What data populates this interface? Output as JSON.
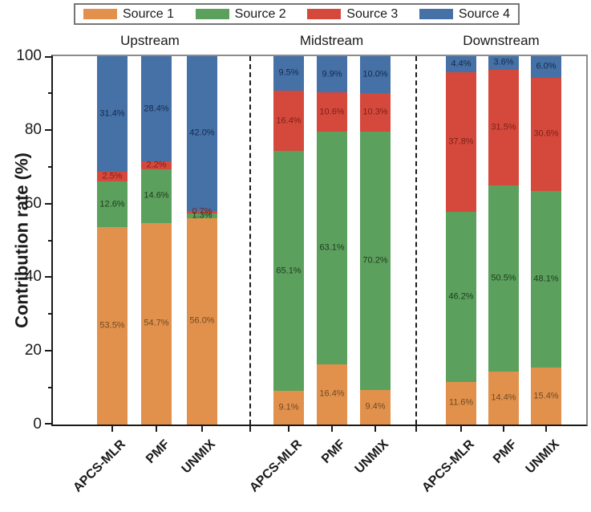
{
  "chart_data": {
    "type": "bar",
    "stacked": true,
    "title": "",
    "xlabel": "",
    "ylabel": "Contribution rate (%)",
    "ylim": [
      0,
      100
    ],
    "yticks_major": [
      0,
      20,
      40,
      60,
      80,
      100
    ],
    "yticks_minor": [
      10,
      30,
      50,
      70,
      90
    ],
    "grid": false,
    "legend_position": "top",
    "legend": [
      {
        "label": "Source 1",
        "color": "#E2914C",
        "label_color": "#6E4A24"
      },
      {
        "label": "Source 2",
        "color": "#5CA05E",
        "label_color": "#1C3C1C"
      },
      {
        "label": "Source 3",
        "color": "#D5493D",
        "label_color": "#7C1F16"
      },
      {
        "label": "Source 4",
        "color": "#4571A6",
        "label_color": "#16294D"
      }
    ],
    "groups": [
      {
        "name": "Upstream",
        "bars": [
          {
            "category": "APCS-MLR",
            "values": [
              53.5,
              12.6,
              2.5,
              31.4
            ],
            "labels": [
              "53.5%",
              "12.6%",
              "2.5%",
              "31.4%"
            ]
          },
          {
            "category": "PMF",
            "values": [
              54.7,
              14.6,
              2.2,
              28.4
            ],
            "labels": [
              "54.7%",
              "14.6%",
              "2.2%",
              "28.4%"
            ]
          },
          {
            "category": "UNMIX",
            "values": [
              56.0,
              1.3,
              0.7,
              42.0
            ],
            "labels": [
              "56.0%",
              "1.3%",
              "0.7%",
              "42.0%"
            ]
          }
        ]
      },
      {
        "name": "Midstream",
        "bars": [
          {
            "category": "APCS-MLR",
            "values": [
              9.1,
              65.1,
              16.4,
              9.5
            ],
            "labels": [
              "9.1%",
              "65.1%",
              "16.4%",
              "9.5%"
            ]
          },
          {
            "category": "PMF",
            "values": [
              16.4,
              63.1,
              10.6,
              9.9
            ],
            "labels": [
              "16.4%",
              "63.1%",
              "10.6%",
              "9.9%"
            ]
          },
          {
            "category": "UNMIX",
            "values": [
              9.4,
              70.2,
              10.3,
              10.0
            ],
            "labels": [
              "9.4%",
              "70.2%",
              "10.3%",
              "10.0%"
            ]
          }
        ]
      },
      {
        "name": "Downstream",
        "bars": [
          {
            "category": "APCS-MLR",
            "values": [
              11.6,
              46.2,
              37.8,
              4.4
            ],
            "labels": [
              "11.6%",
              "46.2%",
              "37.8%",
              "4.4%"
            ]
          },
          {
            "category": "PMF",
            "values": [
              14.4,
              50.5,
              31.5,
              3.6
            ],
            "labels": [
              "14.4%",
              "50.5%",
              "31.5%",
              "3.6%"
            ]
          },
          {
            "category": "UNMIX",
            "values": [
              15.4,
              48.1,
              30.6,
              6.0
            ],
            "labels": [
              "15.4%",
              "48.1%",
              "30.6%",
              "6.0%"
            ]
          }
        ]
      }
    ]
  }
}
